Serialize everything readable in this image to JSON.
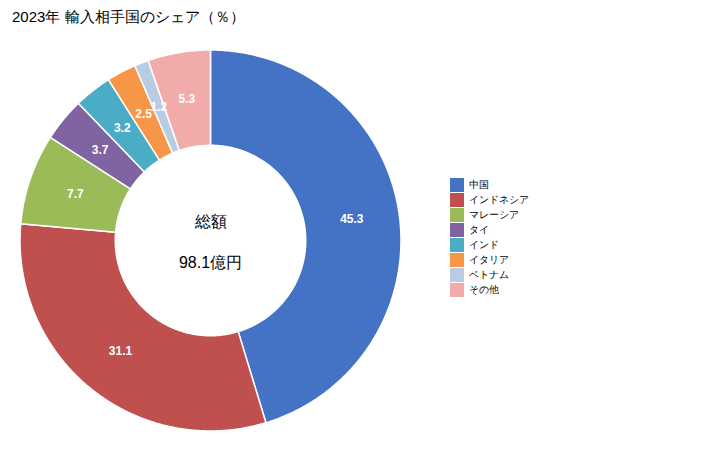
{
  "chart_data": {
    "type": "pie",
    "title": "2023年 輸入相手国のシェア（％）",
    "categories": [
      "中国",
      "インドネシア",
      "マレーシア",
      "タイ",
      "インド",
      "イタリア",
      "ベトナム",
      "その他"
    ],
    "values": [
      45.3,
      31.1,
      7.7,
      3.7,
      3.2,
      2.5,
      1.2,
      5.3
    ],
    "colors": [
      "#4472C4",
      "#C0504D",
      "#9BBB59",
      "#8064A2",
      "#4BACC6",
      "#F79646",
      "#B8CCE4",
      "#F2ABAB"
    ],
    "data_labels": true,
    "annotations": [
      "総額",
      "98.1億円"
    ],
    "legend": "right"
  }
}
